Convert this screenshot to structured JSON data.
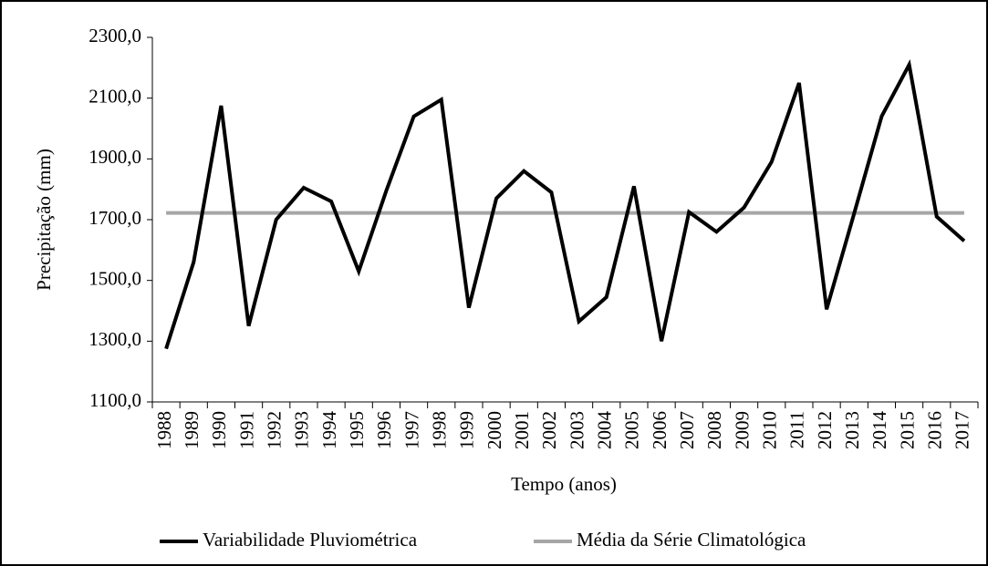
{
  "chart_data": {
    "type": "line",
    "y_label": "Precipitação (mm)",
    "x_label": "Tempo (anos)",
    "categories": [
      "1988",
      "1989",
      "1990",
      "1991",
      "1992",
      "1993",
      "1994",
      "1995",
      "1996",
      "1997",
      "1998",
      "1999",
      "2000",
      "2001",
      "2002",
      "2003",
      "2004",
      "2005",
      "2006",
      "2007",
      "2008",
      "2009",
      "2010",
      "2011",
      "2012",
      "2013",
      "2014",
      "2015",
      "2016",
      "2017"
    ],
    "series": [
      {
        "name": "Variabilidade Pluviométrica",
        "color": "#000000",
        "values": [
          1275,
          1560,
          2075,
          1350,
          1700,
          1805,
          1760,
          1530,
          1795,
          2040,
          2095,
          1410,
          1770,
          1860,
          1790,
          1365,
          1445,
          1810,
          1300,
          1725,
          1660,
          1740,
          1890,
          2150,
          1405,
          1720,
          2040,
          2210,
          1710,
          1630
        ]
      },
      {
        "name": "Média da Série Climatológica",
        "color": "#a6a6a6",
        "values": [
          1722,
          1722,
          1722,
          1722,
          1722,
          1722,
          1722,
          1722,
          1722,
          1722,
          1722,
          1722,
          1722,
          1722,
          1722,
          1722,
          1722,
          1722,
          1722,
          1722,
          1722,
          1722,
          1722,
          1722,
          1722,
          1722,
          1722,
          1722,
          1722,
          1722
        ]
      }
    ],
    "ylim": [
      1100,
      2300
    ],
    "yticks": [
      {
        "value": 1100,
        "label": "1100,0"
      },
      {
        "value": 1300,
        "label": "1300,0"
      },
      {
        "value": 1500,
        "label": "1500,0"
      },
      {
        "value": 1700,
        "label": "1700,0"
      },
      {
        "value": 1900,
        "label": "1900,0"
      },
      {
        "value": 2100,
        "label": "2100,0"
      },
      {
        "value": 2300,
        "label": "2300,0"
      }
    ],
    "legend": "bottom"
  }
}
